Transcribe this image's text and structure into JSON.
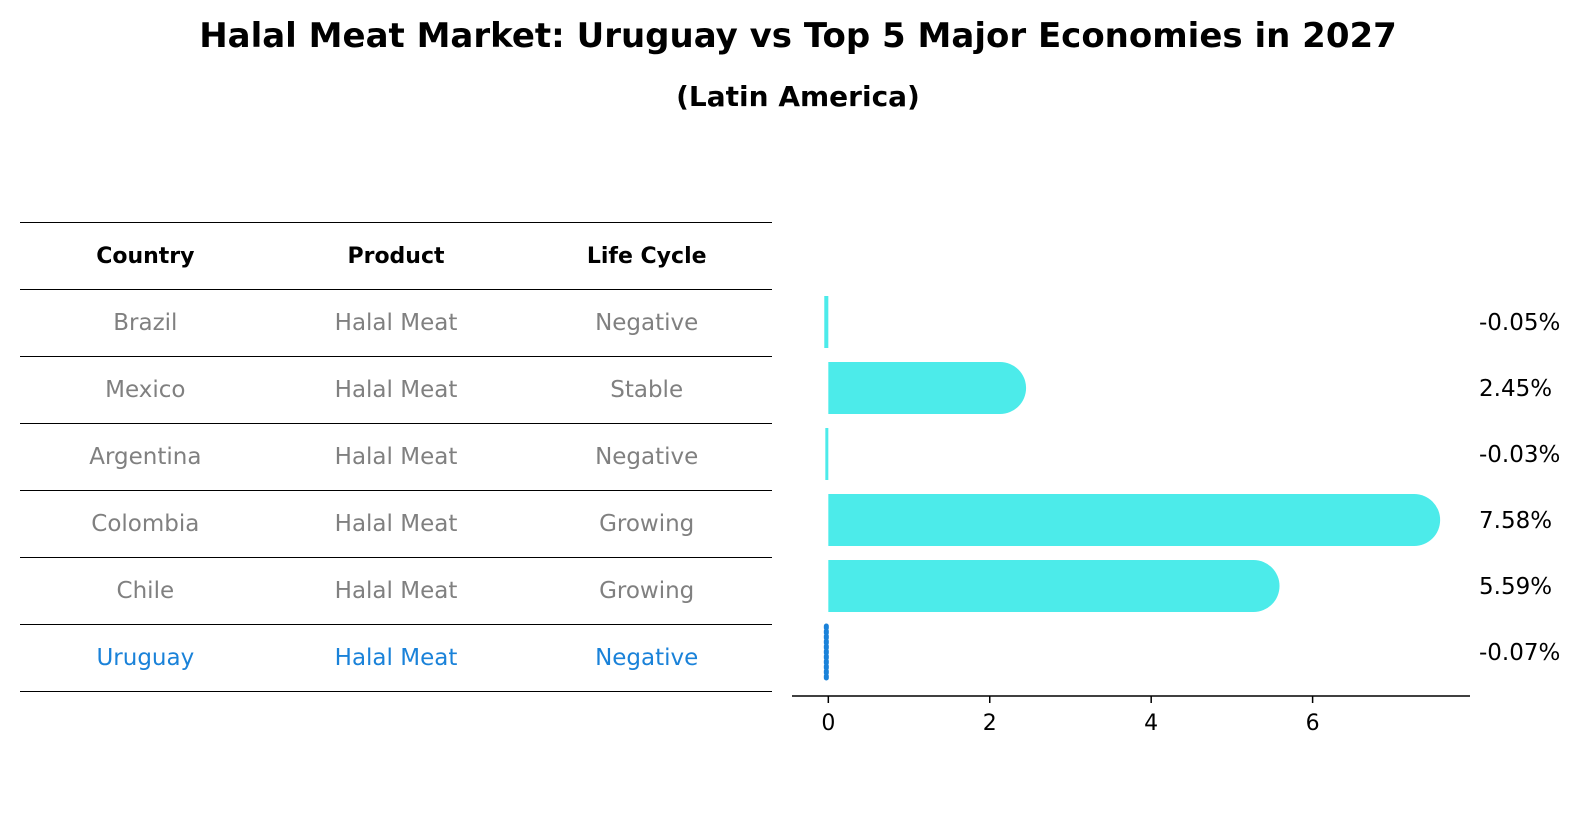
{
  "title": "Halal Meat Market: Uruguay vs Top 5 Major Economies in 2027",
  "subtitle": "(Latin America)",
  "table": {
    "headers": [
      "Country",
      "Product",
      "Life Cycle"
    ],
    "rows": [
      {
        "country": "Brazil",
        "product": "Halal Meat",
        "life_cycle": "Negative"
      },
      {
        "country": "Mexico",
        "product": "Halal Meat",
        "life_cycle": "Stable"
      },
      {
        "country": "Argentina",
        "product": "Halal Meat",
        "life_cycle": "Negative"
      },
      {
        "country": "Colombia",
        "product": "Halal Meat",
        "life_cycle": "Growing"
      },
      {
        "country": "Chile",
        "product": "Halal Meat",
        "life_cycle": "Growing"
      },
      {
        "country": "Uruguay",
        "product": "Halal Meat",
        "life_cycle": "Negative"
      }
    ],
    "highlight_country": "Uruguay"
  },
  "colors": {
    "bar": "#4cebea",
    "highlight": "#1a82d9",
    "muted_text": "#808080"
  },
  "chart_data": {
    "type": "bar",
    "orientation": "horizontal",
    "categories": [
      "Brazil",
      "Mexico",
      "Argentina",
      "Colombia",
      "Chile",
      "Uruguay"
    ],
    "values": [
      -0.05,
      2.45,
      -0.03,
      7.58,
      5.59,
      -0.07
    ],
    "value_labels": [
      "-0.05%",
      "2.45%",
      "-0.03%",
      "7.58%",
      "5.59%",
      "-0.07%"
    ],
    "xticks": [
      0,
      2,
      4,
      6
    ],
    "xlim": [
      -0.45,
      7.95
    ],
    "grid": false
  }
}
